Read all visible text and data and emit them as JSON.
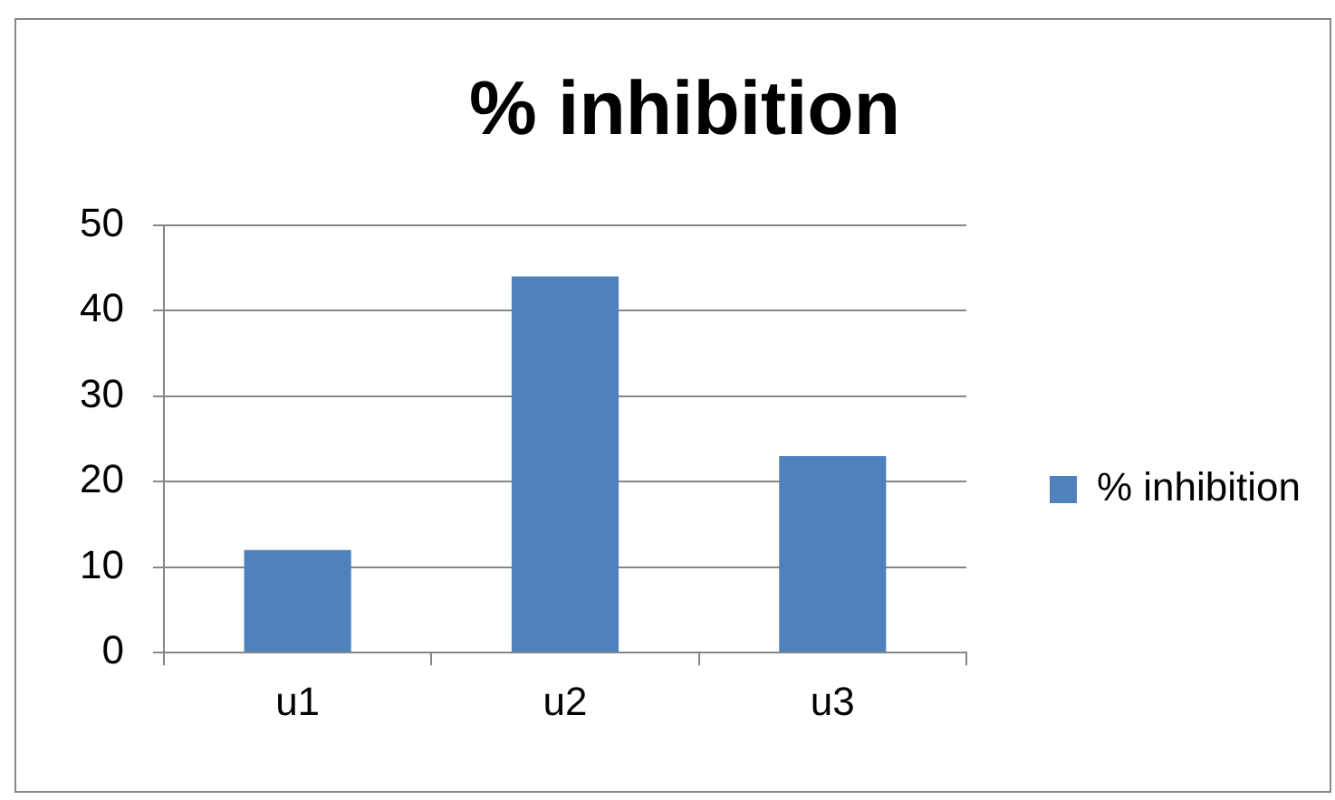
{
  "chart_data": {
    "type": "bar",
    "title": "% inhibition",
    "categories": [
      "u1",
      "u2",
      "u3"
    ],
    "series": [
      {
        "name": "% inhibition",
        "color": "#4f81bd",
        "values": [
          12,
          44,
          23
        ]
      }
    ],
    "ylim": [
      0,
      50
    ],
    "yticks": [
      0,
      10,
      20,
      30,
      40,
      50
    ],
    "grid": "y",
    "legend": "right"
  }
}
